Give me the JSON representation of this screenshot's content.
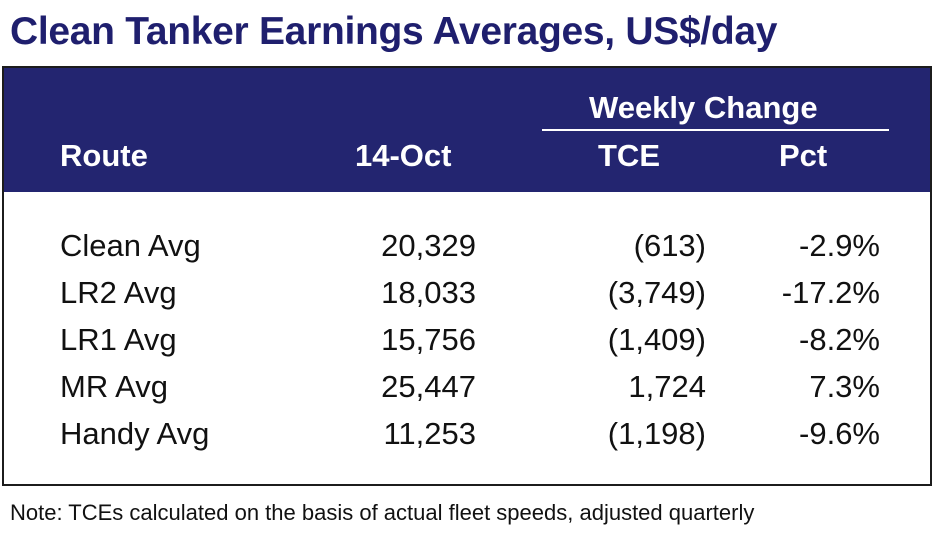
{
  "title": "Clean Tanker Earnings Averages, US$/day",
  "header": {
    "group_label": "Weekly Change",
    "col_route": "Route",
    "col_date": "14-Oct",
    "col_tce": "TCE",
    "col_pct": "Pct"
  },
  "rows": [
    {
      "route": "Clean Avg",
      "value": "20,329",
      "tce": "(613)",
      "pct": "-2.9%"
    },
    {
      "route": "LR2 Avg",
      "value": "18,033",
      "tce": "(3,749)",
      "pct": "-17.2%"
    },
    {
      "route": "LR1 Avg",
      "value": "15,756",
      "tce": "(1,409)",
      "pct": "-8.2%"
    },
    {
      "route": "MR Avg",
      "value": "25,447",
      "tce": "1,724",
      "pct": "7.3%"
    },
    {
      "route": "Handy Avg",
      "value": "11,253",
      "tce": "(1,198)",
      "pct": "-9.6%"
    }
  ],
  "note": "Note: TCEs calculated on the basis of actual fleet speeds, adjusted quarterly",
  "colors": {
    "title": "#1f1f6e",
    "header_bg": "#232570",
    "header_text": "#ffffff"
  }
}
